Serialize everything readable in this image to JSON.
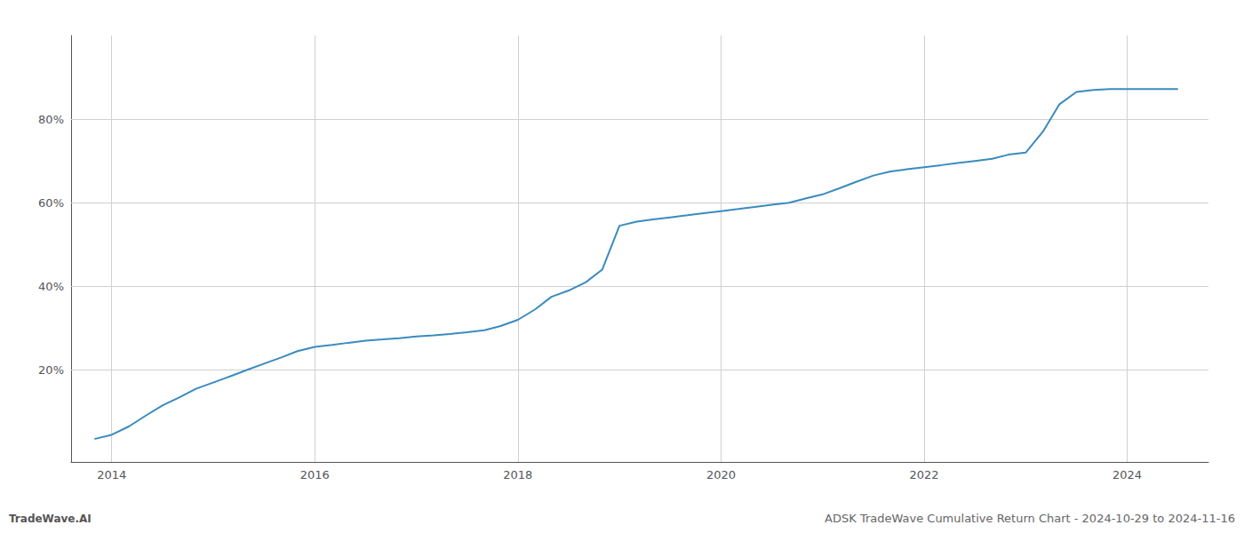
{
  "chart_data": {
    "type": "line",
    "title": "ADSK TradeWave Cumulative Return Chart - 2024-10-29 to 2024-11-16",
    "annotations": [
      "TradeWave.AI"
    ],
    "x": [
      2013.83,
      2014.0,
      2014.17,
      2014.33,
      2014.5,
      2014.67,
      2014.83,
      2015.0,
      2015.17,
      2015.33,
      2015.5,
      2015.67,
      2015.83,
      2016.0,
      2016.17,
      2016.33,
      2016.5,
      2016.67,
      2016.83,
      2017.0,
      2017.17,
      2017.33,
      2017.5,
      2017.67,
      2017.83,
      2018.0,
      2018.17,
      2018.33,
      2018.5,
      2018.67,
      2018.83,
      2019.0,
      2019.17,
      2019.33,
      2019.5,
      2019.67,
      2019.83,
      2020.0,
      2020.17,
      2020.33,
      2020.5,
      2020.67,
      2020.83,
      2021.0,
      2021.17,
      2021.33,
      2021.5,
      2021.67,
      2021.83,
      2022.0,
      2022.17,
      2022.33,
      2022.5,
      2022.67,
      2022.83,
      2023.0,
      2023.17,
      2023.33,
      2023.5,
      2023.67,
      2023.83,
      2024.0,
      2024.17,
      2024.33,
      2024.5
    ],
    "values": [
      3.5,
      4.5,
      6.5,
      9.0,
      11.5,
      13.5,
      15.5,
      17.0,
      18.5,
      20.0,
      21.5,
      23.0,
      24.5,
      25.5,
      26.0,
      26.5,
      27.0,
      27.3,
      27.6,
      28.0,
      28.3,
      28.6,
      29.0,
      29.5,
      30.5,
      32.0,
      34.5,
      37.5,
      39.0,
      41.0,
      44.0,
      54.5,
      55.5,
      56.0,
      56.5,
      57.0,
      57.5,
      58.0,
      58.5,
      59.0,
      59.5,
      60.0,
      61.0,
      62.0,
      63.5,
      65.0,
      66.5,
      67.5,
      68.0,
      68.5,
      69.0,
      69.5,
      70.0,
      70.5,
      71.5,
      72.0,
      77.0,
      83.5,
      86.5,
      87.0,
      87.2,
      87.2,
      87.2,
      87.2,
      87.2
    ],
    "color": "#3a8bbf",
    "xlim": [
      2013.6,
      2024.8
    ],
    "ylim": [
      -2,
      100
    ],
    "xticks": [
      2014,
      2016,
      2018,
      2020,
      2022,
      2024
    ],
    "yticks": [
      {
        "value": 20,
        "label": "20%"
      },
      {
        "value": 40,
        "label": "40%"
      },
      {
        "value": 60,
        "label": "60%"
      },
      {
        "value": 80,
        "label": "80%"
      }
    ],
    "grid": true
  }
}
